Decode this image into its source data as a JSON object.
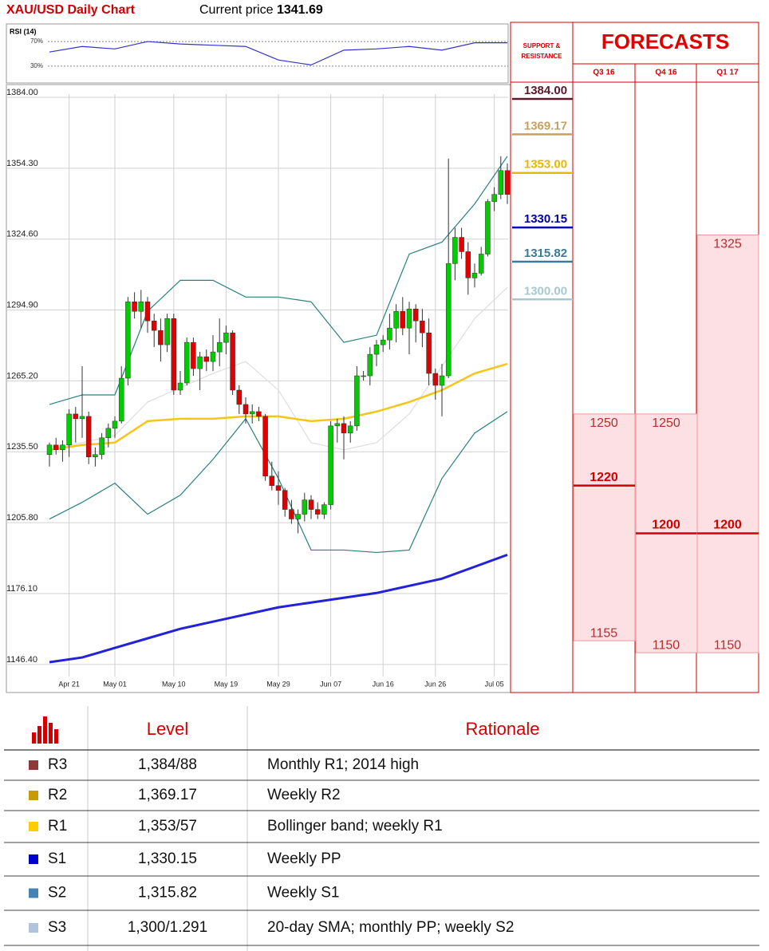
{
  "header": {
    "current_price_label": "Current price",
    "current_price": 1341.69
  },
  "chart_data": [
    {
      "type": "candlestick",
      "title": "XAU/USD Daily Chart",
      "categories": [
        null,
        null,
        null,
        "Apr 21",
        null,
        null,
        null,
        null,
        null,
        null,
        "May 01",
        null,
        null,
        null,
        null,
        null,
        null,
        null,
        null,
        "May 10",
        null,
        null,
        null,
        null,
        null,
        null,
        null,
        "May 19",
        null,
        null,
        null,
        null,
        null,
        null,
        null,
        "May 29",
        null,
        null,
        null,
        null,
        null,
        null,
        null,
        "Jun 07",
        null,
        null,
        null,
        null,
        null,
        null,
        null,
        "Jun 16",
        null,
        null,
        null,
        null,
        null,
        null,
        null,
        "Jun 26",
        null,
        null,
        null,
        null,
        null,
        null,
        null,
        null,
        "Jul 05",
        null,
        null
      ],
      "ohlc": [
        [
          1233,
          1238,
          1228,
          1237
        ],
        [
          1237,
          1240,
          1233,
          1235
        ],
        [
          1235,
          1239,
          1230,
          1237
        ],
        [
          1237,
          1252,
          1232,
          1250
        ],
        [
          1250,
          1253,
          1238,
          1248
        ],
        [
          1248,
          1270,
          1240,
          1249
        ],
        [
          1249,
          1251,
          1229,
          1232
        ],
        [
          1232,
          1236,
          1228,
          1233
        ],
        [
          1233,
          1242,
          1231,
          1240
        ],
        [
          1240,
          1246,
          1236,
          1244
        ],
        [
          1244,
          1249,
          1240,
          1247
        ],
        [
          1247,
          1270,
          1246,
          1265
        ],
        [
          1265,
          1299,
          1262,
          1297
        ],
        [
          1297,
          1301,
          1290,
          1293
        ],
        [
          1293,
          1302,
          1286,
          1297
        ],
        [
          1297,
          1299,
          1284,
          1289
        ],
        [
          1289,
          1292,
          1278,
          1285
        ],
        [
          1285,
          1290,
          1272,
          1279
        ],
        [
          1279,
          1292,
          1276,
          1290
        ],
        [
          1290,
          1292,
          1258,
          1260
        ],
        [
          1260,
          1268,
          1258,
          1263
        ],
        [
          1263,
          1282,
          1262,
          1280
        ],
        [
          1280,
          1282,
          1266,
          1269
        ],
        [
          1269,
          1276,
          1260,
          1274
        ],
        [
          1274,
          1277,
          1268,
          1272
        ],
        [
          1272,
          1283,
          1268,
          1276
        ],
        [
          1276,
          1290,
          1270,
          1280
        ],
        [
          1280,
          1287,
          1275,
          1284
        ],
        [
          1284,
          1285,
          1258,
          1260
        ],
        [
          1260,
          1262,
          1250,
          1254
        ],
        [
          1254,
          1257,
          1246,
          1250
        ],
        [
          1250,
          1254,
          1246,
          1251
        ],
        [
          1251,
          1253,
          1247,
          1249
        ],
        [
          1249,
          1250,
          1222,
          1224
        ],
        [
          1224,
          1230,
          1218,
          1220
        ],
        [
          1220,
          1226,
          1212,
          1218
        ],
        [
          1218,
          1219,
          1207,
          1210
        ],
        [
          1210,
          1214,
          1204,
          1206
        ],
        [
          1206,
          1210,
          1200,
          1208
        ],
        [
          1208,
          1217,
          1205,
          1214
        ],
        [
          1214,
          1216,
          1206,
          1210
        ],
        [
          1210,
          1213,
          1206,
          1208
        ],
        [
          1208,
          1213,
          1206,
          1212
        ],
        [
          1212,
          1247,
          1210,
          1245
        ],
        [
          1245,
          1248,
          1238,
          1246
        ],
        [
          1246,
          1249,
          1231,
          1242
        ],
        [
          1242,
          1247,
          1238,
          1245
        ],
        [
          1245,
          1270,
          1243,
          1266
        ],
        [
          1266,
          1268,
          1264,
          1266
        ],
        [
          1266,
          1278,
          1262,
          1275
        ],
        [
          1275,
          1281,
          1270,
          1279
        ],
        [
          1279,
          1283,
          1276,
          1281
        ],
        [
          1281,
          1292,
          1277,
          1286
        ],
        [
          1286,
          1296,
          1280,
          1293
        ],
        [
          1293,
          1299,
          1283,
          1286
        ],
        [
          1286,
          1297,
          1275,
          1294
        ],
        [
          1294,
          1296,
          1280,
          1289
        ],
        [
          1289,
          1294,
          1278,
          1284
        ],
        [
          1284,
          1290,
          1262,
          1267
        ],
        [
          1267,
          1269,
          1256,
          1262
        ],
        [
          1262,
          1271,
          1249,
          1266
        ],
        [
          1266,
          1357,
          1265,
          1313
        ],
        [
          1313,
          1328,
          1306,
          1324
        ],
        [
          1324,
          1328,
          1315,
          1318
        ],
        [
          1318,
          1322,
          1300,
          1307
        ],
        [
          1307,
          1313,
          1303,
          1309
        ],
        [
          1309,
          1320,
          1308,
          1317
        ],
        [
          1317,
          1340,
          1316,
          1339
        ],
        [
          1339,
          1345,
          1335,
          1342
        ],
        [
          1342,
          1358,
          1340,
          1352
        ],
        [
          1352,
          1355,
          1338,
          1342
        ]
      ],
      "up_color": "#00cc00",
      "down_color": "#e00000",
      "overlays": [
        {
          "color": "#2a7f7f",
          "x": [
            0,
            5,
            10,
            15,
            20,
            25,
            30,
            35,
            40,
            45,
            50,
            55,
            60,
            65,
            70
          ],
          "values": [
            1254,
            1258,
            1258,
            1293,
            1306,
            1306,
            1299,
            1299,
            1297,
            1280,
            1283,
            1317,
            1322,
            1338,
            1358
          ]
        },
        {
          "color": "#2a7f7f",
          "x": [
            0,
            5,
            10,
            15,
            20,
            25,
            30,
            35,
            40,
            45,
            50,
            55,
            60,
            65,
            70
          ],
          "values": [
            1206,
            1213,
            1221,
            1208,
            1216,
            1231,
            1248,
            1223,
            1193,
            1193,
            1192,
            1193,
            1223,
            1242,
            1251
          ]
        },
        {
          "color": "#dddddd",
          "x": [
            0,
            5,
            10,
            15,
            20,
            25,
            30,
            35,
            40,
            45,
            50,
            55,
            60,
            65,
            70
          ],
          "values": [
            1235,
            1238,
            1241,
            1255,
            1261,
            1267,
            1272,
            1260,
            1238,
            1235,
            1238,
            1250,
            1270,
            1290,
            1303
          ]
        },
        {
          "color": "#f5c518",
          "x": [
            0,
            5,
            10,
            15,
            20,
            25,
            30,
            35,
            40,
            45,
            50,
            55,
            60,
            65,
            70
          ],
          "values": [
            1235,
            1237,
            1238,
            1247,
            1248,
            1248,
            1249,
            1249,
            1247,
            1248,
            1251,
            1255,
            1260,
            1267,
            1271
          ]
        },
        {
          "color": "#2222dd",
          "x": [
            0,
            5,
            10,
            15,
            20,
            25,
            30,
            35,
            40,
            45,
            50,
            55,
            60,
            65,
            70
          ],
          "values": [
            1146,
            1148,
            1152,
            1156,
            1160,
            1163,
            1166,
            1169,
            1171,
            1173,
            1175,
            1178,
            1181,
            1186,
            1191
          ]
        }
      ],
      "ylim": [
        1141,
        1384
      ],
      "yticks": [
        {
          "value": 1384,
          "label": "1384.00"
        },
        {
          "value": 1354.3,
          "label": "1354.30"
        },
        {
          "value": 1324.6,
          "label": "1324.60"
        },
        {
          "value": 1294.9,
          "label": "1294.90"
        },
        {
          "value": 1265.2,
          "label": "1265.20"
        },
        {
          "value": 1235.5,
          "label": "1235.50"
        },
        {
          "value": 1205.8,
          "label": "1205.80"
        },
        {
          "value": 1176.1,
          "label": "1176.10"
        },
        {
          "value": 1146.4,
          "label": "1146.40"
        }
      ],
      "grid": true
    },
    {
      "type": "line",
      "title": "RSI (14)",
      "color": "#3333cc",
      "x": [
        0,
        5,
        10,
        15,
        20,
        25,
        30,
        35,
        40,
        45,
        50,
        55,
        60,
        65,
        70
      ],
      "values": [
        53,
        62,
        58,
        70,
        66,
        64,
        62,
        40,
        32,
        56,
        58,
        62,
        56,
        68,
        68
      ],
      "ylim": [
        4,
        96
      ],
      "yticks": [
        {
          "value": 30,
          "label": "30%"
        },
        {
          "value": 70,
          "label": "70%"
        }
      ]
    }
  ],
  "forecasts": {
    "title": "FORECASTS",
    "levels_header": [
      "SUPPORT &",
      "RESISTANCE"
    ],
    "levels": [
      {
        "value": 1384,
        "label": "1384.00",
        "color": "#5a1a2a"
      },
      {
        "value": 1369.17,
        "label": "1369.17",
        "color": "#c8a060"
      },
      {
        "value": 1353,
        "label": "1353.00",
        "color": "#e8b800"
      },
      {
        "value": 1330.15,
        "label": "1330.15",
        "color": "#0000aa"
      },
      {
        "value": 1315.82,
        "label": "1315.82",
        "color": "#3a7a9a"
      },
      {
        "value": 1300,
        "label": "1300.00",
        "color": "#a8c8d0"
      }
    ],
    "columns": [
      {
        "label": "Q3 16",
        "high": 1250,
        "mid": 1220,
        "low": 1155
      },
      {
        "label": "Q4 16",
        "high": 1250,
        "mid": 1200,
        "low": 1150
      },
      {
        "label": "Q1 17",
        "high": 1325,
        "mid": 1200,
        "low": 1150
      }
    ]
  },
  "table": {
    "header": [
      "Level",
      "Rationale"
    ],
    "rows": [
      {
        "name": "R3",
        "color": "#8b3a3a",
        "level": "1,384/88",
        "rationale": "Monthly R1; 2014 high"
      },
      {
        "name": "R2",
        "color": "#c89b00",
        "level": "1,369.17",
        "rationale": "Weekly R2"
      },
      {
        "name": "R1",
        "color": "#ffcc00",
        "level": "1,353/57",
        "rationale": "Bollinger band; weekly R1"
      },
      {
        "name": "S1",
        "color": "#0000cc",
        "level": "1,330.15",
        "rationale": "Weekly PP"
      },
      {
        "name": "S2",
        "color": "#4682b4",
        "level": "1,315.82",
        "rationale": "Weekly S1"
      },
      {
        "name": "S3",
        "color": "#b0c4de",
        "level": "1,300/1.291",
        "rationale": "20-day SMA; monthly PP; weekly S2"
      }
    ]
  }
}
